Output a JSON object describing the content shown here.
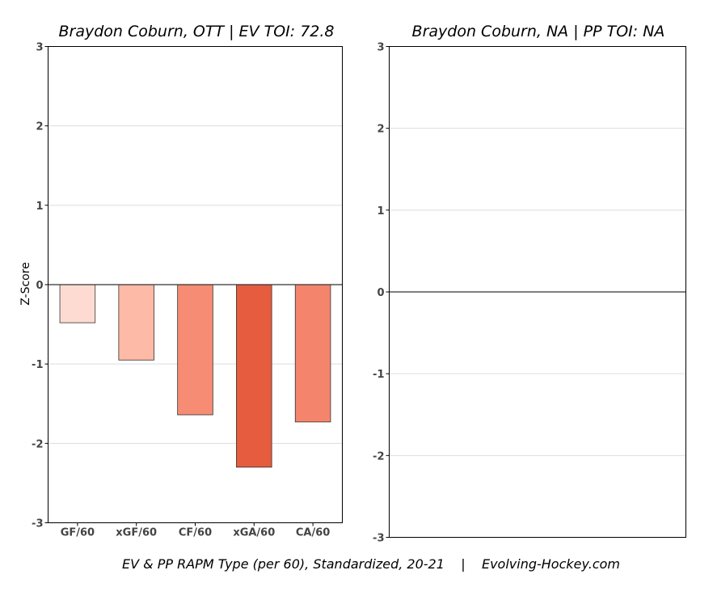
{
  "chart_data": [
    {
      "type": "bar",
      "title": "Braydon Coburn, OTT  |  EV TOI: 72.8",
      "ylabel": "Z-Score",
      "categories": [
        "GF/60",
        "xGF/60",
        "CF/60",
        "xGA/60",
        "CA/60"
      ],
      "values": [
        -0.48,
        -0.95,
        -1.64,
        -2.3,
        -1.73
      ],
      "colors": [
        "#fedbd2",
        "#fcbaa7",
        "#f58c73",
        "#e55c3f",
        "#f4856c"
      ],
      "ylim": [
        -3,
        3
      ],
      "yticks": [
        "-3",
        "-2",
        "-1",
        "0",
        "1",
        "2",
        "3"
      ],
      "grid": true
    },
    {
      "type": "bar",
      "title": "Braydon Coburn, NA  |  PP TOI: NA",
      "ylabel": "",
      "categories": [],
      "values": [],
      "ylim": [
        -3,
        3
      ],
      "yticks": [
        "-3",
        "-2",
        "-1",
        "0",
        "1",
        "2",
        "3"
      ],
      "grid": true
    }
  ],
  "caption": "EV & PP RAPM Type (per 60), Standardized, 20-21    |    Evolving-Hockey.com"
}
